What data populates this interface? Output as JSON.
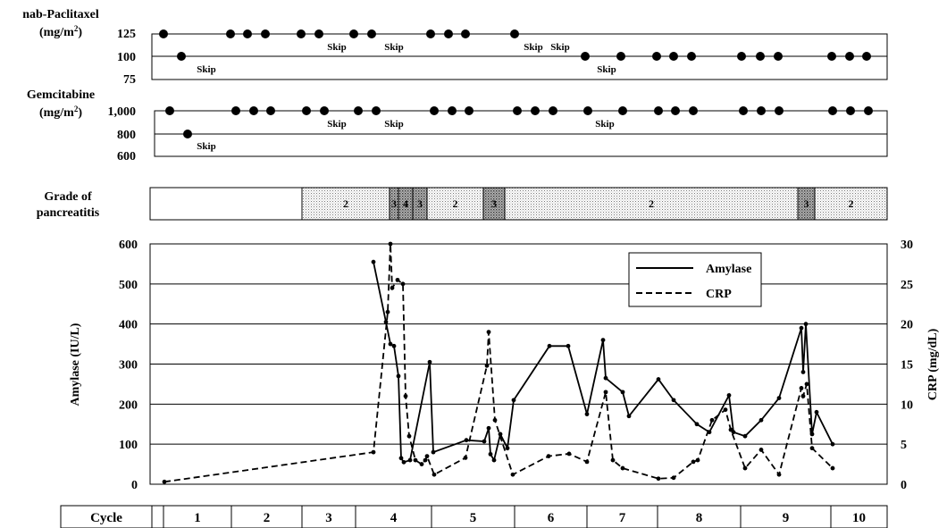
{
  "chart_data": [
    {
      "type": "dot-timeline",
      "title": "nab-Paclitaxel",
      "title_line2_prefix": "(mg/m",
      "title_sup": "2",
      "title_line2_suffix": ")",
      "y_ticks": [
        "125",
        "100",
        "75"
      ],
      "y_values": [
        125,
        100,
        75
      ],
      "dose_values": [
        125,
        100,
        125,
        125,
        125,
        125,
        125,
        125,
        125,
        125,
        125,
        125,
        125,
        100,
        100,
        100,
        100,
        100,
        100,
        100,
        100,
        100,
        100,
        100
      ],
      "skip_labels": [
        "Skip",
        "Skip",
        "Skip",
        "Skip",
        "Skip",
        "Skip"
      ],
      "color": "#000000"
    },
    {
      "type": "dot-timeline",
      "title": "Gemcitabine",
      "title_line2_prefix": "(mg/m",
      "title_sup": "2",
      "title_line2_suffix": ")",
      "y_ticks": [
        "1,000",
        "800",
        "600"
      ],
      "y_values": [
        1000,
        800,
        600
      ],
      "dose_values": [
        1000,
        800,
        1000,
        1000,
        1000,
        1000,
        1000,
        1000,
        1000,
        1000,
        1000,
        1000,
        1000,
        1000,
        1000,
        1000,
        1000,
        1000,
        1000,
        1000,
        1000,
        1000,
        1000,
        1000,
        1000,
        1000,
        1000,
        1000
      ],
      "skip_labels": [
        "Skip",
        "Skip",
        "Skip",
        "Skip"
      ],
      "color": "#000000"
    },
    {
      "type": "grade-bar",
      "title_line1": "Grade of",
      "title_line2": "pancreatitis",
      "segments": [
        {
          "grade": "",
          "style": "none"
        },
        {
          "grade": "2",
          "style": "light"
        },
        {
          "grade": "3",
          "style": "dark"
        },
        {
          "grade": "4",
          "style": "dark"
        },
        {
          "grade": "3",
          "style": "dark"
        },
        {
          "grade": "2",
          "style": "light"
        },
        {
          "grade": "3",
          "style": "dark"
        },
        {
          "grade": "2",
          "style": "light"
        },
        {
          "grade": "3",
          "style": "dark"
        },
        {
          "grade": "2",
          "style": "light"
        }
      ]
    },
    {
      "type": "line",
      "ylabel": "Amylase (IU/L)",
      "ylabel_right": "CRP (mg/dL)",
      "ylim": [
        0,
        600
      ],
      "ylim_right": [
        0,
        30
      ],
      "yticks": [
        "0",
        "100",
        "200",
        "300",
        "400",
        "500",
        "600"
      ],
      "yticks_right": [
        "0",
        "5",
        "10",
        "15",
        "20",
        "25",
        "30"
      ],
      "grid": true,
      "legend_position": "top-right",
      "series": [
        {
          "name": "Amylase",
          "style": "solid",
          "axis": "left",
          "values": [
            555,
            405,
            350,
            345,
            270,
            65,
            55,
            60,
            305,
            80,
            110,
            107,
            140,
            75,
            60,
            125,
            90,
            210,
            345,
            345,
            175,
            360,
            265,
            230,
            170,
            262,
            210,
            150,
            130,
            222,
            130,
            120,
            160,
            215,
            390,
            280,
            400,
            125,
            180,
            100
          ]
        },
        {
          "name": "CRP",
          "style": "dashed",
          "axis": "right",
          "values": [
            0.3,
            4.0,
            21.5,
            30.0,
            24.5,
            25.5,
            25.0,
            11.0,
            6.0,
            3.0,
            2.5,
            3.0,
            3.5,
            1.2,
            3.3,
            14.8,
            19.0,
            8.0,
            1.2,
            3.5,
            3.8,
            2.8,
            11.5,
            3.0,
            2.0,
            0.7,
            0.8,
            2.8,
            3.0,
            8.0,
            9.3,
            6.8,
            2.0,
            4.3,
            1.2,
            12.0,
            11.0,
            12.5,
            4.5,
            2.0
          ]
        }
      ]
    },
    {
      "type": "table",
      "header": "Cycle",
      "cells": [
        "1",
        "2",
        "3",
        "4",
        "5",
        "6",
        "7",
        "8",
        "9",
        "10"
      ]
    }
  ]
}
